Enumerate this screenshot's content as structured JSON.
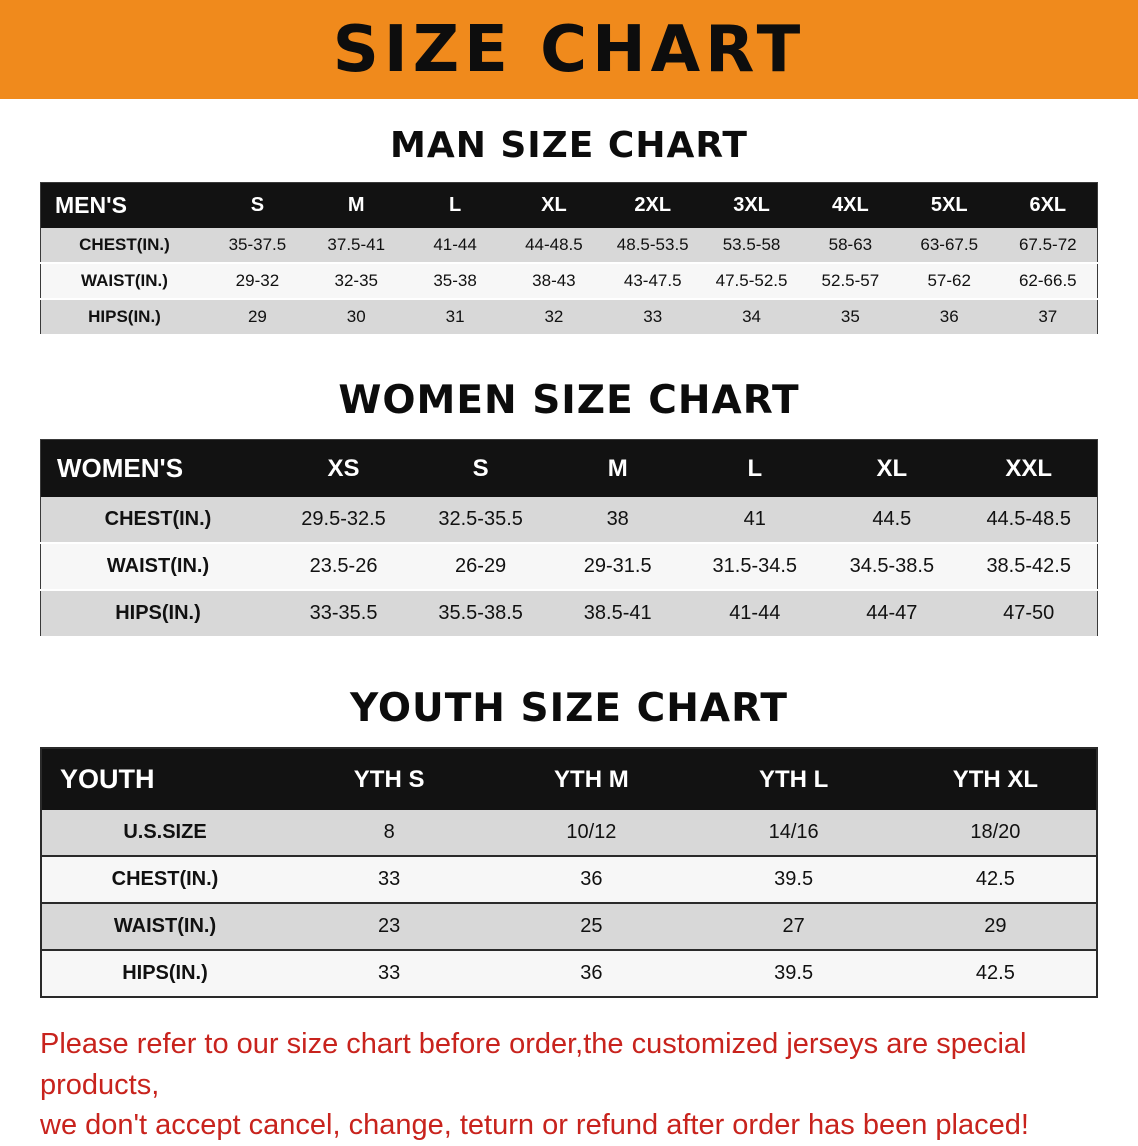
{
  "banner": {
    "title": "SIZE CHART",
    "bg_color": "#F08A1C",
    "text_color": "#0d0d0d"
  },
  "sections": [
    {
      "heading": "MAN SIZE CHART",
      "table": {
        "label": "MEN'S",
        "columns": [
          "S",
          "M",
          "L",
          "XL",
          "2XL",
          "3XL",
          "4XL",
          "5XL",
          "6XL"
        ],
        "rows": [
          {
            "label": "CHEST(IN.)",
            "values": [
              "35-37.5",
              "37.5-41",
              "41-44",
              "44-48.5",
              "48.5-53.5",
              "53.5-58",
              "58-63",
              "63-67.5",
              "67.5-72"
            ]
          },
          {
            "label": "WAIST(IN.)",
            "values": [
              "29-32",
              "32-35",
              "35-38",
              "38-43",
              "43-47.5",
              "47.5-52.5",
              "52.5-57",
              "57-62",
              "62-66.5"
            ]
          },
          {
            "label": "HIPS(IN.)",
            "values": [
              "29",
              "30",
              "31",
              "32",
              "33",
              "34",
              "35",
              "36",
              "37"
            ]
          }
        ]
      }
    },
    {
      "heading": "WOMEN SIZE CHART",
      "table": {
        "label": "WOMEN'S",
        "columns": [
          "XS",
          "S",
          "M",
          "L",
          "XL",
          "XXL"
        ],
        "rows": [
          {
            "label": "CHEST(IN.)",
            "values": [
              "29.5-32.5",
              "32.5-35.5",
              "38",
              "41",
              "44.5",
              "44.5-48.5"
            ]
          },
          {
            "label": "WAIST(IN.)",
            "values": [
              "23.5-26",
              "26-29",
              "29-31.5",
              "31.5-34.5",
              "34.5-38.5",
              "38.5-42.5"
            ]
          },
          {
            "label": "HIPS(IN.)",
            "values": [
              "33-35.5",
              "35.5-38.5",
              "38.5-41",
              "41-44",
              "44-47",
              "47-50"
            ]
          }
        ]
      }
    },
    {
      "heading": "YOUTH SIZE CHART",
      "table": {
        "label": "YOUTH",
        "columns": [
          "YTH S",
          "YTH M",
          "YTH L",
          "YTH XL"
        ],
        "rows": [
          {
            "label": "U.S.SIZE",
            "values": [
              "8",
              "10/12",
              "14/16",
              "18/20"
            ]
          },
          {
            "label": "CHEST(IN.)",
            "values": [
              "33",
              "36",
              "39.5",
              "42.5"
            ]
          },
          {
            "label": "WAIST(IN.)",
            "values": [
              "23",
              "25",
              "27",
              "29"
            ]
          },
          {
            "label": "HIPS(IN.)",
            "values": [
              "33",
              "36",
              "39.5",
              "42.5"
            ]
          }
        ]
      }
    }
  ],
  "disclaimer": {
    "line1": "Please refer to our size chart before order,the customized jerseys are special products,",
    "line2": "we don't accept cancel, change, teturn or refund after order has been placed!",
    "color": "#C8231D"
  }
}
